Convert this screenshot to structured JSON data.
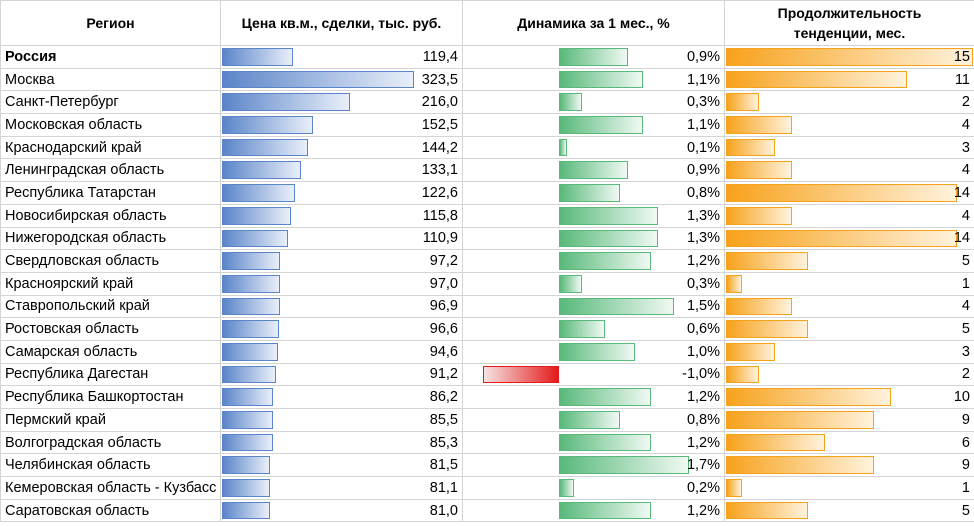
{
  "headers": {
    "region": "Регион",
    "price": "Цена кв.м., сделки, тыс. руб.",
    "dynamics": "Динамика за 1 мес., %",
    "duration_line1": "Продолжительность",
    "duration_line2": "тенденции, мес."
  },
  "colors": {
    "price_bar": "#5b85c9",
    "positive_bar": "#58b97a",
    "negative_bar": "#e31b1b",
    "duration_bar": "#f7a21c"
  },
  "scales": {
    "price_max": 323.5,
    "dynamics_max": 1.7,
    "duration_max": 15
  },
  "rows": [
    {
      "region": "Россия",
      "price": "119,4",
      "price_value": 119.4,
      "dynamics": "0,9%",
      "dynamics_value": 0.9,
      "duration": "15",
      "duration_value": 15,
      "bold": true
    },
    {
      "region": "Москва",
      "price": "323,5",
      "price_value": 323.5,
      "dynamics": "1,1%",
      "dynamics_value": 1.1,
      "duration": "11",
      "duration_value": 11
    },
    {
      "region": "Санкт-Петербург",
      "price": "216,0",
      "price_value": 216.0,
      "dynamics": "0,3%",
      "dynamics_value": 0.3,
      "duration": "2",
      "duration_value": 2
    },
    {
      "region": "Московская область",
      "price": "152,5",
      "price_value": 152.5,
      "dynamics": "1,1%",
      "dynamics_value": 1.1,
      "duration": "4",
      "duration_value": 4
    },
    {
      "region": "Краснодарский край",
      "price": "144,2",
      "price_value": 144.2,
      "dynamics": "0,1%",
      "dynamics_value": 0.1,
      "duration": "3",
      "duration_value": 3
    },
    {
      "region": "Ленинградская область",
      "price": "133,1",
      "price_value": 133.1,
      "dynamics": "0,9%",
      "dynamics_value": 0.9,
      "duration": "4",
      "duration_value": 4
    },
    {
      "region": "Республика Татарстан",
      "price": "122,6",
      "price_value": 122.6,
      "dynamics": "0,8%",
      "dynamics_value": 0.8,
      "duration": "14",
      "duration_value": 14
    },
    {
      "region": "Новосибирская область",
      "price": "115,8",
      "price_value": 115.8,
      "dynamics": "1,3%",
      "dynamics_value": 1.3,
      "duration": "4",
      "duration_value": 4
    },
    {
      "region": "Нижегородская область",
      "price": "110,9",
      "price_value": 110.9,
      "dynamics": "1,3%",
      "dynamics_value": 1.3,
      "duration": "14",
      "duration_value": 14
    },
    {
      "region": "Свердловская область",
      "price": "97,2",
      "price_value": 97.2,
      "dynamics": "1,2%",
      "dynamics_value": 1.2,
      "duration": "5",
      "duration_value": 5
    },
    {
      "region": "Красноярский край",
      "price": "97,0",
      "price_value": 97.0,
      "dynamics": "0,3%",
      "dynamics_value": 0.3,
      "duration": "1",
      "duration_value": 1
    },
    {
      "region": "Ставропольский край",
      "price": "96,9",
      "price_value": 96.9,
      "dynamics": "1,5%",
      "dynamics_value": 1.5,
      "duration": "4",
      "duration_value": 4
    },
    {
      "region": "Ростовская область",
      "price": "96,6",
      "price_value": 96.6,
      "dynamics": "0,6%",
      "dynamics_value": 0.6,
      "duration": "5",
      "duration_value": 5
    },
    {
      "region": "Самарская область",
      "price": "94,6",
      "price_value": 94.6,
      "dynamics": "1,0%",
      "dynamics_value": 1.0,
      "duration": "3",
      "duration_value": 3
    },
    {
      "region": "Республика Дагестан",
      "price": "91,2",
      "price_value": 91.2,
      "dynamics": "-1,0%",
      "dynamics_value": -1.0,
      "duration": "2",
      "duration_value": 2
    },
    {
      "region": "Республика Башкортостан",
      "price": "86,2",
      "price_value": 86.2,
      "dynamics": "1,2%",
      "dynamics_value": 1.2,
      "duration": "10",
      "duration_value": 10
    },
    {
      "region": "Пермский край",
      "price": "85,5",
      "price_value": 85.5,
      "dynamics": "0,8%",
      "dynamics_value": 0.8,
      "duration": "9",
      "duration_value": 9
    },
    {
      "region": "Волгоградская область",
      "price": "85,3",
      "price_value": 85.3,
      "dynamics": "1,2%",
      "dynamics_value": 1.2,
      "duration": "6",
      "duration_value": 6
    },
    {
      "region": "Челябинская область",
      "price": "81,5",
      "price_value": 81.5,
      "dynamics": "1,7%",
      "dynamics_value": 1.7,
      "duration": "9",
      "duration_value": 9
    },
    {
      "region": "Кемеровская область - Кузбасс",
      "price": "81,1",
      "price_value": 81.1,
      "dynamics": "0,2%",
      "dynamics_value": 0.2,
      "duration": "1",
      "duration_value": 1
    },
    {
      "region": "Саратовская область",
      "price": "81,0",
      "price_value": 81.0,
      "dynamics": "1,2%",
      "dynamics_value": 1.2,
      "duration": "5",
      "duration_value": 5
    }
  ]
}
